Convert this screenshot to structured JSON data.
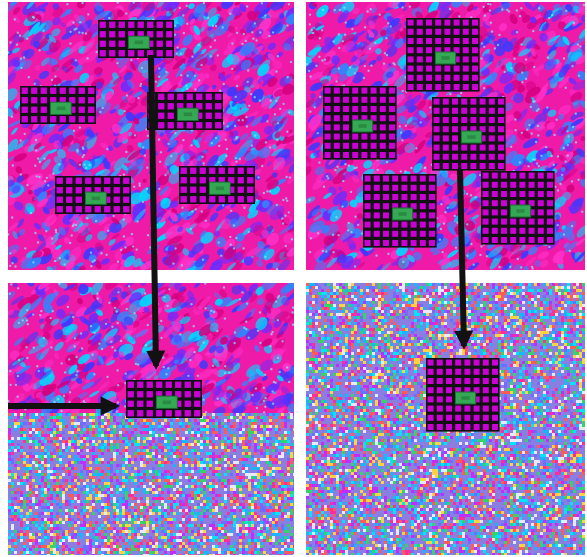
{
  "colors": {
    "background": "#ffffff",
    "texture_base": "#f01aa8",
    "texture_blobs": [
      "#3a3aff",
      "#2f86ff",
      "#00d8ff",
      "#d40080",
      "#ff30c8",
      "#6a2cff"
    ],
    "noise_palette": [
      "#ff2d9a",
      "#00e5ff",
      "#35d36a",
      "#6d6dff",
      "#ffd23f",
      "#c12cff",
      "#ff5a5a",
      "#19b6ff",
      "#e8e8ff"
    ],
    "grid_border": "#111111",
    "grid_cell": "#cc00d6",
    "grid_center": "#34a852",
    "arrow": "#111111"
  },
  "panels": [
    {
      "id": "panel-top-left",
      "background": "texture",
      "grids": [
        {
          "size": "4x8"
        },
        {
          "size": "4x8"
        },
        {
          "size": "4x8"
        },
        {
          "size": "4x8"
        },
        {
          "size": "4x8"
        }
      ]
    },
    {
      "id": "panel-top-right",
      "background": "texture",
      "grids": [
        {
          "size": "8x8"
        },
        {
          "size": "8x8"
        },
        {
          "size": "8x8"
        },
        {
          "size": "8x8"
        },
        {
          "size": "8x8"
        }
      ]
    },
    {
      "id": "panel-bottom-left",
      "background": "texture-over-noise",
      "grids": [
        {
          "size": "4x8"
        }
      ]
    },
    {
      "id": "panel-bottom-right",
      "background": "noise",
      "grids": [
        {
          "size": "8x8"
        }
      ]
    }
  ],
  "arrows": [
    {
      "from": "panel-top-left",
      "to": "panel-bottom-left",
      "direction": "down"
    },
    {
      "from": "left-edge",
      "to": "panel-bottom-left",
      "direction": "right"
    },
    {
      "from": "panel-top-right",
      "to": "panel-bottom-right",
      "direction": "down"
    }
  ]
}
